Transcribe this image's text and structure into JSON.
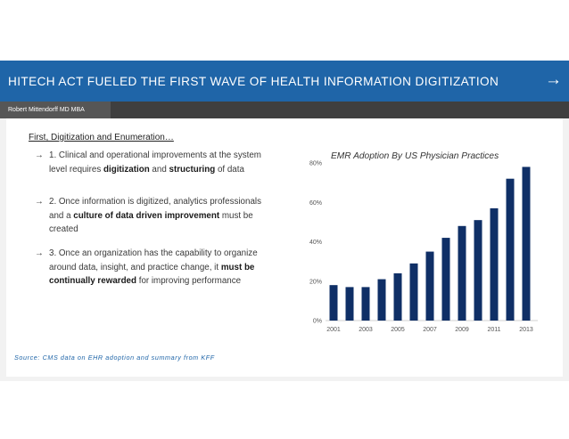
{
  "header": {
    "title": "HITECH ACT FUELED THE FIRST WAVE OF HEALTH INFORMATION DIGITIZATION",
    "arrow": "→",
    "author": "Robert Mittendorff MD MBA"
  },
  "content": {
    "heading": "First, Digitization and Enumeration…",
    "bullets": [
      {
        "arrow": "→",
        "parts": [
          {
            "text": "1. Clinical and operational improvements at the system level requires ",
            "bold": false
          },
          {
            "text": "digitization",
            "bold": true
          },
          {
            "text": " and ",
            "bold": false
          },
          {
            "text": "structuring",
            "bold": true
          },
          {
            "text": " of data",
            "bold": false
          }
        ]
      },
      {
        "arrow": "→",
        "parts": [
          {
            "text": "2. Once information is digitized, analytics professionals and a ",
            "bold": false
          },
          {
            "text": "culture of data driven improvement",
            "bold": true
          },
          {
            "text": " must be created",
            "bold": false
          }
        ]
      },
      {
        "arrow": "→",
        "parts": [
          {
            "text": "3. Once an organization has the capability to organize around data, insight, and practice change, it ",
            "bold": false
          },
          {
            "text": "must be continually rewarded",
            "bold": true
          },
          {
            "text": " for improving performance",
            "bold": false
          }
        ]
      }
    ],
    "source": "Source: CMS data on EHR adoption and summary from KFF"
  },
  "colors": {
    "title_bar": "#1f65a8",
    "bar": "#0f2f66"
  },
  "chart_data": {
    "type": "bar",
    "title": "EMR Adoption By US Physician Practices",
    "xlabel": "",
    "ylabel": "",
    "x_tick_labels": [
      "2001",
      "2003",
      "2005",
      "2007",
      "2009",
      "2011",
      "2013"
    ],
    "y_tick_labels": [
      "0%",
      "20%",
      "40%",
      "60%",
      "80%"
    ],
    "ylim": [
      0,
      80
    ],
    "grid": false,
    "categories": [
      "2001",
      "2002",
      "2003",
      "2004",
      "2005",
      "2006",
      "2007",
      "2008",
      "2009",
      "2010",
      "2011",
      "2012",
      "2013"
    ],
    "values": [
      18,
      17,
      17,
      21,
      24,
      29,
      35,
      42,
      48,
      51,
      57,
      72,
      78
    ]
  }
}
